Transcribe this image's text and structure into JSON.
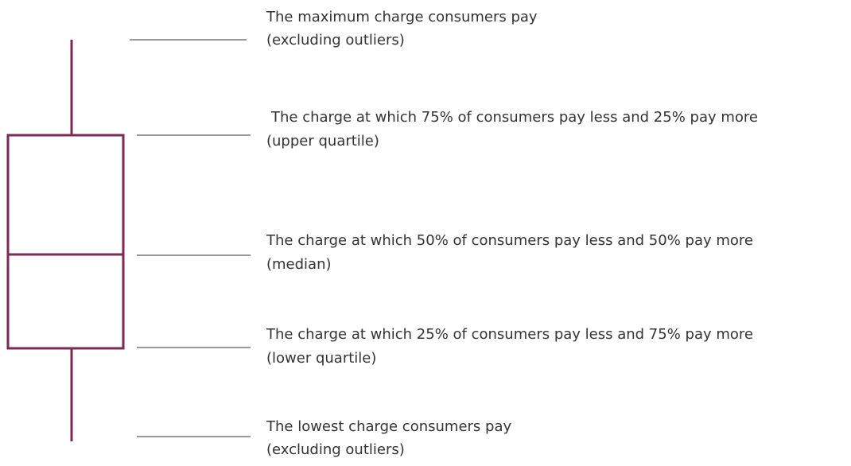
{
  "labels": [
    {
      "text": "The maximum charge consumers pay",
      "detail": "(excluding outliers)"
    },
    {
      "text": "The charge at which 75% of consumers pay less and 25% pay more",
      "detail": "(upper quartile)"
    },
    {
      "text": "The charge at which 50% of consumers pay less and 50% pay more",
      "detail": "(median)"
    },
    {
      "text": "The charge at which 25% of consumers pay less and 75% pay more",
      "detail": "(lower quartile)"
    },
    {
      "text": "The lowest charge consumers pay",
      "detail": "(excluding outliers)"
    }
  ]
}
